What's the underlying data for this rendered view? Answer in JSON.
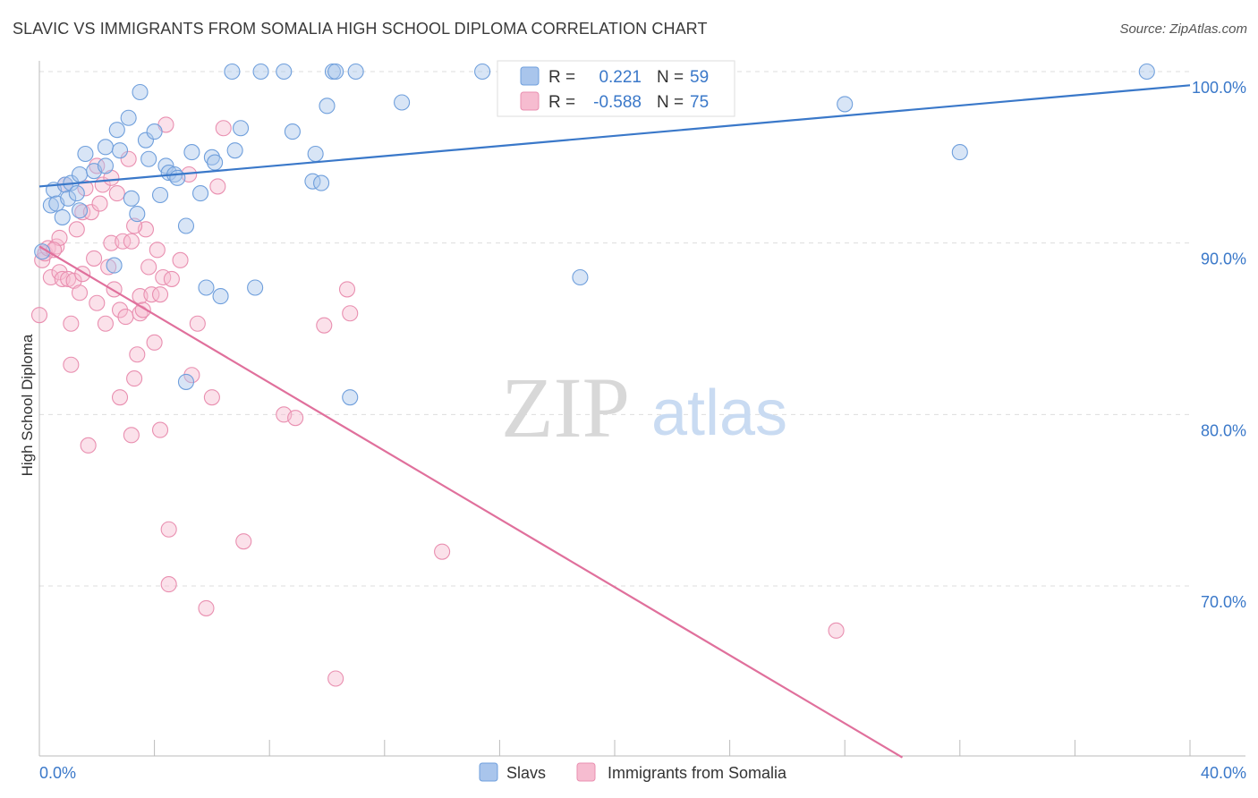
{
  "title": "SLAVIC VS IMMIGRANTS FROM SOMALIA HIGH SCHOOL DIPLOMA CORRELATION CHART",
  "source": "Source: ZipAtlas.com",
  "watermark": {
    "part1": "ZIP",
    "part2": "atlas"
  },
  "legend_box": [
    {
      "r_label": "R =",
      "r_value": "0.221",
      "n_label": "N =",
      "n_value": "59"
    },
    {
      "r_label": "R =",
      "r_value": "-0.588",
      "n_label": "N =",
      "n_value": "75"
    }
  ],
  "colors": {
    "slavs_fill": "#a9c5ec",
    "slavs_stroke": "#6f9fdc",
    "slavs_line": "#3a78c9",
    "somalia_fill": "#f6bcd0",
    "somalia_stroke": "#e98fb0",
    "somalia_line": "#e0709c",
    "tick_label": "#3a78c9",
    "grid": "#dddddd"
  },
  "chart_data": {
    "type": "scatter",
    "title": "SLAVIC VS IMMIGRANTS FROM SOMALIA HIGH SCHOOL DIPLOMA CORRELATION CHART",
    "xlabel": "",
    "ylabel": "High School Diploma",
    "xlim": [
      0,
      40
    ],
    "ylim": [
      60,
      100
    ],
    "x_tick_labels": [
      "0.0%",
      "40.0%"
    ],
    "y_ticks": [
      70,
      80,
      90,
      100
    ],
    "y_tick_labels": [
      "70.0%",
      "80.0%",
      "90.0%",
      "100.0%"
    ],
    "grid": true,
    "legend_position": "bottom",
    "series": [
      {
        "name": "Slavs",
        "r": 0.221,
        "n": 59,
        "trend": {
          "x0": 0,
          "y0": 93.3,
          "x1": 40,
          "y1": 99.2
        },
        "points": [
          [
            0.1,
            89.5
          ],
          [
            0.4,
            92.2
          ],
          [
            0.5,
            93.1
          ],
          [
            0.6,
            92.3
          ],
          [
            0.8,
            91.5
          ],
          [
            0.9,
            93.4
          ],
          [
            1.0,
            92.6
          ],
          [
            1.1,
            93.5
          ],
          [
            1.3,
            92.9
          ],
          [
            1.4,
            91.9
          ],
          [
            1.4,
            94.0
          ],
          [
            1.6,
            95.2
          ],
          [
            1.9,
            94.2
          ],
          [
            2.3,
            94.5
          ],
          [
            2.3,
            95.6
          ],
          [
            2.6,
            88.7
          ],
          [
            2.7,
            96.6
          ],
          [
            2.8,
            95.4
          ],
          [
            3.1,
            97.3
          ],
          [
            3.2,
            92.6
          ],
          [
            3.4,
            91.7
          ],
          [
            3.5,
            98.8
          ],
          [
            3.7,
            96.0
          ],
          [
            3.8,
            94.9
          ],
          [
            4.0,
            96.5
          ],
          [
            4.2,
            92.8
          ],
          [
            4.4,
            94.5
          ],
          [
            4.5,
            94.1
          ],
          [
            4.7,
            94.0
          ],
          [
            4.8,
            93.8
          ],
          [
            5.1,
            91.0
          ],
          [
            5.1,
            81.9
          ],
          [
            5.3,
            95.3
          ],
          [
            5.6,
            92.9
          ],
          [
            5.8,
            87.4
          ],
          [
            6.0,
            95.0
          ],
          [
            6.1,
            94.7
          ],
          [
            6.3,
            86.9
          ],
          [
            6.7,
            100.0
          ],
          [
            6.8,
            95.4
          ],
          [
            7.0,
            96.7
          ],
          [
            7.5,
            87.4
          ],
          [
            7.7,
            100.0
          ],
          [
            8.5,
            100.0
          ],
          [
            8.8,
            96.5
          ],
          [
            9.5,
            93.6
          ],
          [
            9.6,
            95.2
          ],
          [
            9.8,
            93.5
          ],
          [
            10.0,
            98.0
          ],
          [
            10.2,
            100.0
          ],
          [
            10.3,
            100.0
          ],
          [
            10.8,
            81.0
          ],
          [
            11.0,
            100.0
          ],
          [
            12.6,
            98.2
          ],
          [
            15.4,
            100.0
          ],
          [
            18.8,
            88.0
          ],
          [
            28.0,
            98.1
          ],
          [
            32.0,
            95.3
          ],
          [
            38.5,
            100.0
          ]
        ]
      },
      {
        "name": "Immigrants from Somalia",
        "r": -0.588,
        "n": 75,
        "trend": {
          "x0": 0,
          "y0": 89.8,
          "x1": 30,
          "y1": 60.0
        },
        "points": [
          [
            0.0,
            85.8
          ],
          [
            0.1,
            89.0
          ],
          [
            0.2,
            89.4
          ],
          [
            0.3,
            89.7
          ],
          [
            0.4,
            88.0
          ],
          [
            0.6,
            89.8
          ],
          [
            0.7,
            90.3
          ],
          [
            0.7,
            88.3
          ],
          [
            0.8,
            87.9
          ],
          [
            0.9,
            93.4
          ],
          [
            1.0,
            87.9
          ],
          [
            1.1,
            82.9
          ],
          [
            1.1,
            85.3
          ],
          [
            1.2,
            87.8
          ],
          [
            1.3,
            90.8
          ],
          [
            1.4,
            87.1
          ],
          [
            1.5,
            91.8
          ],
          [
            1.6,
            93.2
          ],
          [
            1.7,
            78.2
          ],
          [
            1.8,
            91.8
          ],
          [
            1.9,
            89.1
          ],
          [
            2.0,
            94.5
          ],
          [
            2.0,
            86.5
          ],
          [
            2.1,
            92.3
          ],
          [
            2.2,
            93.4
          ],
          [
            2.3,
            85.3
          ],
          [
            2.4,
            88.6
          ],
          [
            2.5,
            90.0
          ],
          [
            2.6,
            87.3
          ],
          [
            2.7,
            92.9
          ],
          [
            2.8,
            86.1
          ],
          [
            2.8,
            81.0
          ],
          [
            2.9,
            90.1
          ],
          [
            3.0,
            85.7
          ],
          [
            3.1,
            94.9
          ],
          [
            3.2,
            90.1
          ],
          [
            3.2,
            78.8
          ],
          [
            3.3,
            82.1
          ],
          [
            3.4,
            83.5
          ],
          [
            3.5,
            86.9
          ],
          [
            3.5,
            85.9
          ],
          [
            3.6,
            86.1
          ],
          [
            3.7,
            90.8
          ],
          [
            3.8,
            88.6
          ],
          [
            3.9,
            87.0
          ],
          [
            4.0,
            84.2
          ],
          [
            4.1,
            89.6
          ],
          [
            4.2,
            79.1
          ],
          [
            4.2,
            87.0
          ],
          [
            4.3,
            88.0
          ],
          [
            4.4,
            96.9
          ],
          [
            4.5,
            73.3
          ],
          [
            4.5,
            70.1
          ],
          [
            4.9,
            89.0
          ],
          [
            5.3,
            82.3
          ],
          [
            5.5,
            85.3
          ],
          [
            5.8,
            68.7
          ],
          [
            6.0,
            81.0
          ],
          [
            6.4,
            96.7
          ],
          [
            7.1,
            72.6
          ],
          [
            8.5,
            80.0
          ],
          [
            8.9,
            79.8
          ],
          [
            9.9,
            85.2
          ],
          [
            10.3,
            64.6
          ],
          [
            10.7,
            87.3
          ],
          [
            10.8,
            85.9
          ],
          [
            14.0,
            72.0
          ],
          [
            27.7,
            67.4
          ],
          [
            0.5,
            89.6
          ],
          [
            1.5,
            88.2
          ],
          [
            2.5,
            93.8
          ],
          [
            3.3,
            91.0
          ],
          [
            4.6,
            87.9
          ],
          [
            5.2,
            94.0
          ],
          [
            6.2,
            93.3
          ]
        ]
      }
    ]
  }
}
